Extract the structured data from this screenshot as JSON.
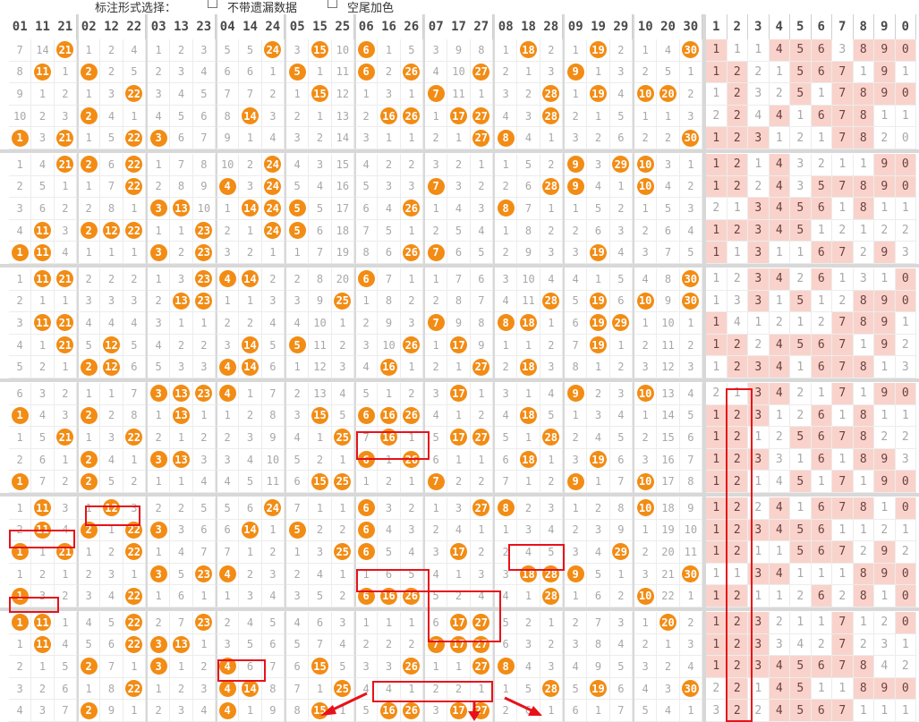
{
  "toolbar": {
    "mark_label": "标注形式选择：",
    "opt1": "不带遗漏数据",
    "opt2": "空尾加色"
  },
  "headers": [
    "01 11 21",
    "02 12 22",
    "03 13 23",
    "04 14 24",
    "05 15 25",
    "06 16 26",
    "07 17 27",
    "08 18 28",
    "09 19 29",
    "10 20 30"
  ],
  "tail_headers": [
    "1",
    "2",
    "3",
    "4",
    "5",
    "6",
    "7",
    "8",
    "9",
    "0"
  ],
  "rows": [
    [
      "7|14|21*",
      "1|2|4",
      "1|2|3",
      "5|5|24*",
      "3|15*|10",
      "6*|1|5",
      "3|9|8",
      "1|18*|2",
      "1|19*|2",
      "1|4|30*",
      "1*|1|1|4*|5*|6*|3|8*|9*|0*"
    ],
    [
      "8|11*|1",
      "2*|2|5",
      "2|3|4",
      "6|6|1",
      "5*|1|11",
      "6*|2|26*",
      "4|10|27*",
      "2|1|3",
      "9*|1|3",
      "2|5|1",
      "1*|2*|2|1|5*|6*|7*|1|9*|1"
    ],
    [
      "9|1|2",
      "1|3|22*",
      "3|4|5",
      "7|7|2",
      "1|15*|12",
      "1|3|1",
      "7*|11|1",
      "3|2|28*",
      "1|19*|4",
      "10*|20*|2",
      "1|2*|3|2|5*|1|7*|8*|9*|0*"
    ],
    [
      "10|2|3",
      "2*|4|1",
      "4|5|6",
      "8|14*|3",
      "2|1|13",
      "2|16*|26*",
      "1|17*|27*",
      "4|3|28*",
      "2|1|5",
      "1|1|3",
      "2|2*|4|4*|1|6*|7*|8*|1|1"
    ],
    [
      "1*|3|21*",
      "1|5|22*",
      "3*|6|7",
      "9|1|4",
      "3|2|14",
      "3|1|1",
      "2|1|27*",
      "8*|4|1",
      "3|2|6",
      "2|2|30*",
      "1*|2*|3*|1|2|1|7*|8*|2|0"
    ],
    [
      "1|4|21*",
      "2*|6|22*",
      "1|7|8",
      "10|2|24*",
      "4|3|15",
      "4|2|2",
      "3|2|1",
      "1|5|2",
      "9*|3|29*",
      "10*|3|1",
      "1*|2*|1|4*|3|2|1|1|9*|0*"
    ],
    [
      "2|5|1",
      "1|7|22*",
      "2|8|9",
      "4*|3|24*",
      "5|4|16",
      "5|3|3",
      "7*|3|2",
      "2|6|28*",
      "9*|4|1",
      "10*|4|2",
      "1*|2*|2|4*|3|5*|7*|8*|9*|0*"
    ],
    [
      "3|6|2",
      "2|8|1",
      "3*|13*|10",
      "1|14*|24*",
      "5*|5|17",
      "6|4|26*",
      "1|4|3",
      "8*|7|1",
      "1|5|2",
      "1|5|3",
      "2|1|3*|4*|5*|6*|1|8*|1|1"
    ],
    [
      "4|11*|3",
      "2*|12*|22*",
      "1|1|23*",
      "2|1|24*",
      "5*|6|18",
      "7|5|1",
      "2|5|4",
      "1|8|2",
      "2|6|3",
      "2|6|4",
      "1*|2*|3*|4*|5*|1|2|1|2|2"
    ],
    [
      "1*|11*|4",
      "1|1|1",
      "3*|2|23*",
      "3|2|1",
      "1|7|19",
      "8|6|26*",
      "7*|6|5",
      "2|9|3",
      "3|19*|4",
      "3|7|5",
      "1*|1|3*|1|1|6*|7*|2|9*|3"
    ],
    [
      "1|11*|21*",
      "2|2|2",
      "1|3|23*",
      "4*|14*|2",
      "2|8|20",
      "6*|7|1",
      "1|7|6",
      "3|10|4",
      "4|1|5",
      "4|8|30*",
      "1|2|3*|4*|2|6*|1|3|1|0*"
    ],
    [
      "2|1|1",
      "3|3|3",
      "2|13*|23*",
      "1|1|3",
      "3|9|25*",
      "1|8|2",
      "2|8|7",
      "4|11|28*",
      "5|19*|6",
      "10*|9|30*",
      "1|3|3*|1|5*|1|2|8*|9*|0*"
    ],
    [
      "3|11*|21*",
      "4|4|4",
      "3|1|1",
      "2|2|4",
      "4|10|1",
      "2|9|3",
      "7*|9|8",
      "8*|18*|1",
      "6|19*|29*",
      "1|10|1",
      "1*|4|1|2|1|2|7*|8*|9*|1"
    ],
    [
      "4|1|21*",
      "5|12*|5",
      "4|2|2",
      "3|14*|5",
      "5*|11|2",
      "3|10|26*",
      "1|17*|9",
      "1|1|2",
      "7|19*|1",
      "2|11|2",
      "1*|2*|2|4*|5*|6*|7*|1|9*|2"
    ],
    [
      "5|2|1",
      "2*|12*|6",
      "5|3|3",
      "4*|14*|6",
      "1|12|3",
      "4|16*|1",
      "2|1|27*",
      "2|18*|3",
      "8|1|2",
      "3|12|3",
      "1|2*|3*|4*|1|6*|7*|8*|1|3"
    ],
    [
      "6|3|2",
      "1|1|7",
      "3*|13*|23*",
      "4*|1|7",
      "2|13|4",
      "5|1|2",
      "3|17*|1",
      "3|1|4",
      "9*|2|3",
      "10*|13|4",
      "2|1|3*|4*|2|1|7*|1|9*|0*"
    ],
    [
      "1*|4|3",
      "2*|2|8",
      "1|13*|1",
      "1|2|8",
      "3|15*|5",
      "6*|16*|26*",
      "4|1|2",
      "4|18*|5",
      "1|3|4",
      "1|14|5",
      "1*|2*|3*|1|2|6*|1|8*|1|1"
    ],
    [
      "1|5|21*",
      "1|3|22*",
      "2|1|2",
      "2|3|9",
      "4|1|25*",
      "7|16*|1",
      "5|17*|27*",
      "5|1|28*",
      "2|4|5",
      "2|15|6",
      "1*|2*|1|2|5*|6*|7*|8*|2|2"
    ],
    [
      "2|6|1",
      "2*|4|1",
      "3*|13*|3",
      "3|4|10",
      "5|2|1",
      "6*|1|26*",
      "6|1|1",
      "6|18*|1",
      "3|19*|6",
      "3|16|7",
      "1*|2*|3*|3|1|6*|1|8*|9*|3"
    ],
    [
      "1*|7|2",
      "2*|5|2",
      "1|1|4",
      "4|5|11",
      "6|15*|25*",
      "1|2|1",
      "7*|2|2",
      "7|1|2",
      "9*|1|7",
      "10*|17|8",
      "1*|2*|1|4|5*|1|7*|1|9*|0*"
    ],
    [
      "1|11*|3",
      "1|12*|3",
      "2|2|5",
      "5|6|24*",
      "7|1|1",
      "6*|3|2",
      "1|3|27*",
      "8*|2|3",
      "1|2|8",
      "10*|18|9",
      "1*|2*|2|4*|1|6*|7*|8*|1|0*"
    ],
    [
      "2|11*|4",
      "2*|1|22*",
      "3*|3|6",
      "6|14*|1",
      "5*|2|2",
      "6*|4|3",
      "2|4|1",
      "1|3|4",
      "2|3|9",
      "1|19|10",
      "1*|2*|3*|4*|5*|6*|1|1|2|1"
    ],
    [
      "1*|1|21*",
      "1|2|22*",
      "1|4|7",
      "7|1|2",
      "1|3|25*",
      "6*|5|4",
      "3|17*|2",
      "2|4|5",
      "3|4|29*",
      "2|20|11",
      "1*|2*|1|1|5*|6*|7*|2|9*|2"
    ],
    [
      "1|2|1",
      "2|3|1",
      "3*|5|23*",
      "4*|2|3",
      "2|4|1",
      "1|6|5",
      "4|1|3",
      "3|18*|28*",
      "9*|5|1",
      "3|21|30*",
      "1|1|3*|4*|1|1|1|8*|9*|0*"
    ],
    [
      "1*|3|2",
      "3|4|22*",
      "1|6|1",
      "1|3|4",
      "3|5|2",
      "6*|16*|26*",
      "5|2|4",
      "4|1|28*",
      "1|6|2",
      "10*|22|1",
      "1*|2*|1|1|2|6*|2|8*|1|0*"
    ],
    [
      "1*|11*|1",
      "4|5|22*",
      "2|7|23*",
      "2|4|5",
      "4|6|3",
      "1|1|1",
      "6|17*|27*",
      "5|2|1",
      "2|7|3",
      "1|20*|2",
      "1*|2*|3*|2|1|1|7*|1|2|0*"
    ],
    [
      "1|11*|4",
      "5|6|22*",
      "3*|13*|1",
      "3|5|6",
      "5|7|4",
      "2|2|2",
      "7*|17*|27*",
      "6|3|2",
      "3|8|4",
      "2|1|3",
      "1*|2*|3*|3|4|2|7*|2|3|1"
    ],
    [
      "2|1|5",
      "2*|7|1",
      "3*|1|2",
      "4*|6|7",
      "6|15*|5",
      "3|3|26*",
      "1|1|27*",
      "8*|4|3",
      "4|9|5",
      "3|2|4",
      "1*|2*|3*|4*|5*|6*|7*|8*|4|2"
    ],
    [
      "3|2|6",
      "1|8|22*",
      "1|2|3",
      "4*|14*|8",
      "7|1|25*",
      "4|4|1",
      "2|2|1",
      "1|5|28*",
      "5|19*|6",
      "4|3|30*",
      "2|2*|1|4*|5*|1|1|8*|9*|0*"
    ],
    [
      "4|3|7",
      "2*|9|1",
      "2|3|4",
      "4*|1|9",
      "8|15*|1",
      "5|16*|26*",
      "3|17*|27*",
      "2|6|1",
      "6|1|7",
      "5|4|1",
      "3|2*|2|4*|5*|6*|7*|1|1|1"
    ]
  ]
}
